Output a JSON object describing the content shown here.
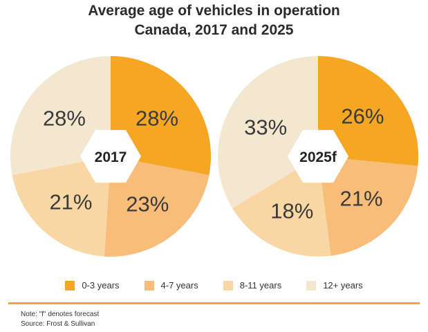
{
  "title": {
    "line1": "Average age of vehicles in operation",
    "line2": "Canada, 2017 and 2025"
  },
  "colors": {
    "0-3 years": "#f5a623",
    "4-7 years": "#f8bd78",
    "8-11 years": "#f9d7a4",
    "12+ years": "#f3e7cf",
    "divider": "#f5a623"
  },
  "chart_data": [
    {
      "type": "pie",
      "center_label": "2017",
      "categories": [
        "0-3 years",
        "4-7 years",
        "8-11 years",
        "12+ years"
      ],
      "values": [
        28,
        23,
        21,
        28
      ],
      "labels": [
        "28%",
        "23%",
        "21%",
        "28%"
      ]
    },
    {
      "type": "pie",
      "center_label": "2025f",
      "categories": [
        "0-3 years",
        "4-7 years",
        "8-11 years",
        "12+ years"
      ],
      "values": [
        26,
        21,
        18,
        33
      ],
      "labels": [
        "26%",
        "21%",
        "18%",
        "33%"
      ]
    }
  ],
  "legend": [
    {
      "label": "0-3 years",
      "color": "#f5a623"
    },
    {
      "label": "4-7 years",
      "color": "#f8bd78"
    },
    {
      "label": "8-11 years",
      "color": "#f9d7a4"
    },
    {
      "label": "12+ years",
      "color": "#f3e7cf"
    }
  ],
  "notes": {
    "note": "Note: \"f\" denotes forecast",
    "source": "Source: Frost & Sullivan"
  }
}
